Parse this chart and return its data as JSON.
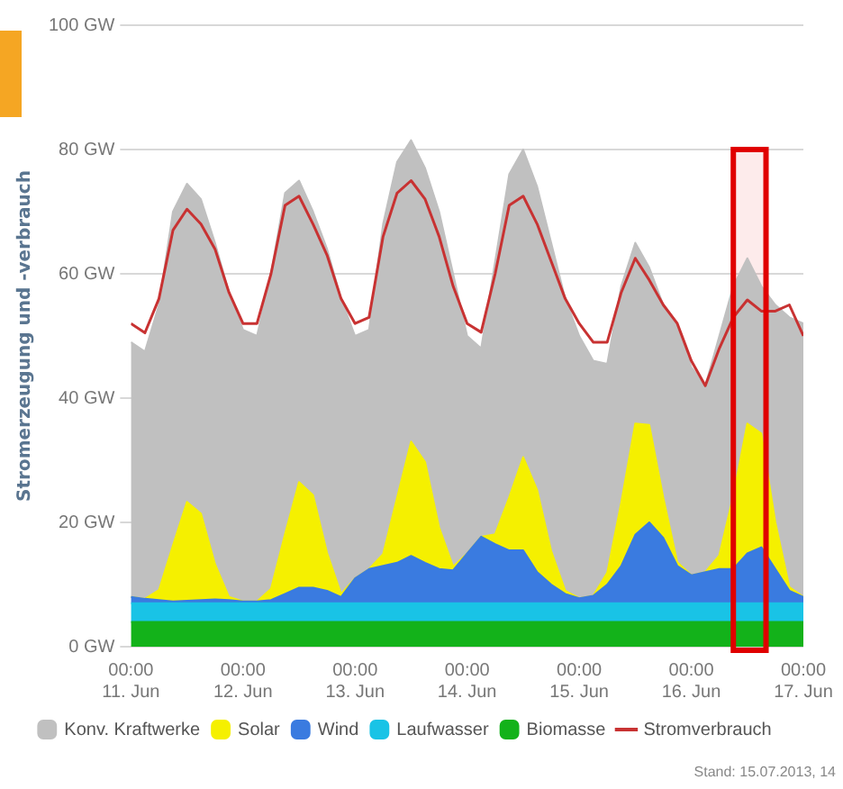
{
  "chart_data": {
    "type": "area",
    "stacked": true,
    "ylabel": "Stromerzeugung und -verbrauch",
    "x": [
      "--06-11T00:00",
      "--06-11T03:00",
      "--06-11T06:00",
      "--06-11T09:00",
      "--06-11T12:00",
      "--06-11T15:00",
      "--06-11T18:00",
      "--06-11T21:00",
      "--06-12T00:00",
      "--06-12T03:00",
      "--06-12T06:00",
      "--06-12T09:00",
      "--06-12T12:00",
      "--06-12T15:00",
      "--06-12T18:00",
      "--06-12T21:00",
      "--06-13T00:00",
      "--06-13T03:00",
      "--06-13T06:00",
      "--06-13T09:00",
      "--06-13T12:00",
      "--06-13T15:00",
      "--06-13T18:00",
      "--06-13T21:00",
      "--06-14T00:00",
      "--06-14T03:00",
      "--06-14T06:00",
      "--06-14T09:00",
      "--06-14T12:00",
      "--06-14T15:00",
      "--06-14T18:00",
      "--06-14T21:00",
      "--06-15T00:00",
      "--06-15T03:00",
      "--06-15T06:00",
      "--06-15T09:00",
      "--06-15T12:00",
      "--06-15T15:00",
      "--06-15T18:00",
      "--06-15T21:00",
      "--06-16T00:00",
      "--06-16T03:00",
      "--06-16T06:00",
      "--06-16T09:00",
      "--06-16T12:00",
      "--06-16T15:00",
      "--06-16T18:00",
      "--06-16T21:00",
      "--06-17T00:00"
    ],
    "xlim": [
      "--06-11T00:00",
      "--06-17T00:00"
    ],
    "xticks": [
      {
        "value": "--06-11T00:00",
        "label": "00:00\n11. Jun"
      },
      {
        "value": "--06-12T00:00",
        "label": "00:00\n12. Jun"
      },
      {
        "value": "--06-13T00:00",
        "label": "00:00\n13. Jun"
      },
      {
        "value": "--06-14T00:00",
        "label": "00:00\n14. Jun"
      },
      {
        "value": "--06-15T00:00",
        "label": "00:00\n15. Jun"
      },
      {
        "value": "--06-16T00:00",
        "label": "00:00\n16. Jun"
      },
      {
        "value": "--06-17T00:00",
        "label": "00:00\n17. Jun"
      }
    ],
    "ylim": [
      0,
      100
    ],
    "yticks": [
      {
        "value": 0,
        "label": "0 GW"
      },
      {
        "value": 20,
        "label": "20 GW"
      },
      {
        "value": 40,
        "label": "40 GW"
      },
      {
        "value": 60,
        "label": "60 GW"
      },
      {
        "value": 80,
        "label": "80 GW"
      },
      {
        "value": 100,
        "label": "100 GW"
      }
    ],
    "grid": "y",
    "legend": "bottom",
    "marker": "none",
    "series": [
      {
        "name": "Biomasse",
        "color": "#13b21a",
        "values": [
          4,
          4,
          4,
          4,
          4,
          4,
          4,
          4,
          4,
          4,
          4,
          4,
          4,
          4,
          4,
          4,
          4,
          4,
          4,
          4,
          4,
          4,
          4,
          4,
          4,
          4,
          4,
          4,
          4,
          4,
          4,
          4,
          4,
          4,
          4,
          4,
          4,
          4,
          4,
          4,
          4,
          4,
          4,
          4,
          4,
          4,
          4,
          4,
          4
        ]
      },
      {
        "name": "Laufwasser",
        "color": "#19c3e6",
        "values": [
          3,
          3,
          3,
          3,
          3,
          3,
          3,
          3,
          3,
          3,
          3,
          3,
          3,
          3,
          3,
          3,
          3,
          3,
          3,
          3,
          3,
          3,
          3,
          3,
          3,
          3,
          3,
          3,
          3,
          3,
          3,
          3,
          3,
          3,
          3,
          3,
          3,
          3,
          3,
          3,
          3,
          3,
          3,
          3,
          3,
          3,
          3,
          3,
          3
        ]
      },
      {
        "name": "Wind",
        "color": "#3a7be0",
        "values": [
          1,
          0.7,
          0.5,
          0.3,
          0.4,
          0.5,
          0.6,
          0.5,
          0.3,
          0.3,
          0.5,
          1.5,
          2.5,
          2.5,
          2,
          1,
          4,
          5.5,
          6,
          6.5,
          7.6,
          6.5,
          5.5,
          5.3,
          8,
          10.7,
          9.5,
          8.5,
          8.5,
          5,
          3,
          1.5,
          0.8,
          1.2,
          3,
          6,
          11,
          13,
          10.5,
          6,
          4.5,
          5,
          5.5,
          5.5,
          8,
          9,
          5.5,
          2,
          1
        ]
      },
      {
        "name": "Solar",
        "color": "#f5f000",
        "values": [
          0,
          0,
          1.6,
          9,
          15.9,
          13.9,
          5.7,
          0.5,
          0,
          0,
          1.8,
          9.6,
          17,
          14.9,
          6.1,
          0.5,
          0,
          0,
          1.9,
          10.5,
          18.4,
          16.2,
          6.7,
          0.6,
          0,
          0,
          1.6,
          8.5,
          15,
          13.2,
          5.4,
          0.5,
          0,
          0,
          1.9,
          10.2,
          17.9,
          15.7,
          6.5,
          0.6,
          0,
          0,
          2.2,
          11.8,
          20.9,
          18.3,
          7.5,
          0.6,
          0
        ]
      },
      {
        "name": "Konv. Kraftwerke",
        "color": "#c0c0c0",
        "values": [
          41,
          39.8,
          45.9,
          53.7,
          51.2,
          50.6,
          51.7,
          49,
          43.7,
          42.7,
          50.7,
          54.9,
          48.5,
          45.6,
          48.9,
          47.5,
          39,
          38.5,
          53.1,
          54,
          48.5,
          47.3,
          50.8,
          47.1,
          35,
          30.3,
          43.9,
          52,
          49.5,
          48.8,
          49.6,
          47,
          42.2,
          37.8,
          33.6,
          34.8,
          29.1,
          25.3,
          31,
          38.4,
          33.5,
          30,
          35.3,
          33.7,
          26.6,
          23.7,
          35,
          43.4,
          44
        ]
      },
      {
        "name": "Stromverbrauch",
        "type": "line",
        "line_style": "solid",
        "color": "#c83232",
        "values": [
          52,
          50.5,
          56,
          67,
          70.4,
          68,
          64,
          57,
          52,
          52,
          60,
          71,
          72.5,
          68,
          63,
          56,
          52,
          53,
          66,
          73,
          75,
          72,
          66,
          58,
          52,
          50.6,
          60,
          71,
          72.5,
          68,
          62,
          56,
          52,
          49,
          49,
          57,
          62.5,
          59,
          55,
          52,
          46,
          42,
          48,
          53,
          55.8,
          54,
          54,
          55,
          50
        ]
      }
    ],
    "bands": [
      {
        "axis": "x",
        "from": "--06-16T09:00",
        "to": "--06-16T16:00",
        "color": "#e00000"
      }
    ],
    "annotations": [
      "Stand: 15.07.2013, 14"
    ]
  }
}
